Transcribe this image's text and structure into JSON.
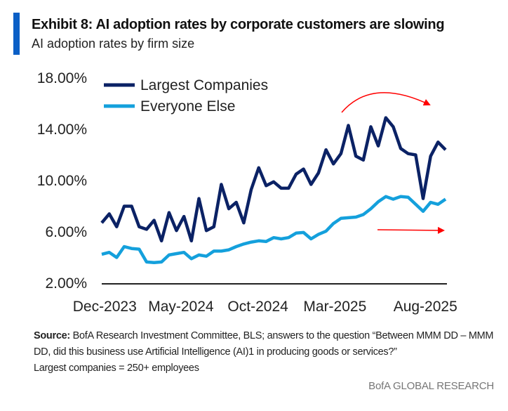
{
  "header": {
    "title": "Exhibit 8: AI adoption rates by corporate customers are slowing",
    "subtitle": "AI adoption rates by firm size"
  },
  "chart_data": {
    "type": "line",
    "title": "",
    "xlabel": "",
    "ylabel": "",
    "ylim": [
      2,
      18
    ],
    "yticks": [
      "2.00%",
      "6.00%",
      "10.00%",
      "14.00%",
      "18.00%"
    ],
    "ytick_values": [
      2,
      6,
      10,
      14,
      18
    ],
    "xtick_labels": [
      "Dec-2023",
      "May-2024",
      "Oct-2024",
      "Mar-2025",
      "Aug-2025"
    ],
    "x_range": [
      "Dec-2023",
      "Sep-2025"
    ],
    "x_frequency": "biweekly",
    "grid": false,
    "legend_position": "top-left",
    "series": [
      {
        "name": "Largest Companies",
        "color": "#0b2265",
        "values": [
          6.7,
          7.4,
          6.4,
          8.0,
          8.0,
          6.4,
          6.2,
          6.9,
          5.3,
          7.5,
          6.1,
          7.2,
          5.3,
          8.6,
          6.1,
          6.4,
          9.7,
          7.8,
          8.3,
          6.7,
          9.3,
          11.0,
          9.6,
          9.9,
          9.4,
          9.4,
          10.5,
          10.9,
          9.7,
          10.6,
          12.4,
          11.3,
          12.1,
          14.3,
          11.9,
          11.6,
          14.2,
          12.7,
          14.9,
          14.2,
          12.5,
          12.1,
          12.0,
          8.6,
          11.9,
          13.0,
          12.4
        ]
      },
      {
        "name": "Everyone Else",
        "color": "#14a0dc",
        "values": [
          4.25,
          4.4,
          4.0,
          4.85,
          4.7,
          4.65,
          3.65,
          3.6,
          3.65,
          4.2,
          4.3,
          4.4,
          3.9,
          4.2,
          4.1,
          4.5,
          4.5,
          4.6,
          4.85,
          5.05,
          5.2,
          5.3,
          5.25,
          5.55,
          5.45,
          5.55,
          5.9,
          5.95,
          5.45,
          5.8,
          6.05,
          6.65,
          7.05,
          7.1,
          7.15,
          7.35,
          7.8,
          8.35,
          8.75,
          8.55,
          8.75,
          8.7,
          8.15,
          7.6,
          8.3,
          8.15,
          8.55
        ]
      }
    ],
    "annotations": [
      {
        "type": "curved-arrow",
        "color": "#ff0000",
        "meaning": "peak and decline in Largest Companies"
      },
      {
        "type": "straight-arrow",
        "color": "#ff0000",
        "meaning": "flat trend in Everyone Else"
      }
    ]
  },
  "footer": {
    "source_label": "Source:",
    "source_text": " BofA Research Investment Committee, BLS; answers to the question “Between MMM DD – MMM DD, did this business use Artificial Intelligence (AI)1 in producing goods or services?”",
    "note": "Largest companies  = 250+ employees",
    "brand": "BofA GLOBAL RESEARCH"
  }
}
